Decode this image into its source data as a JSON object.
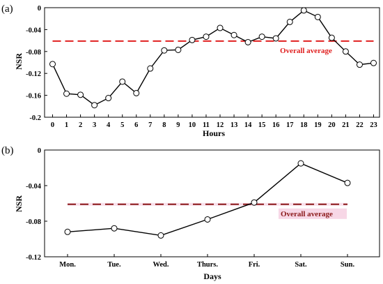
{
  "chart_data": [
    {
      "type": "line",
      "panel_label": "(a)",
      "xlabel": "Hours",
      "ylabel": "NSR",
      "x": [
        "0",
        "1",
        "2",
        "3",
        "4",
        "5",
        "6",
        "7",
        "8",
        "9",
        "10",
        "11",
        "12",
        "13",
        "14",
        "15",
        "16",
        "17",
        "18",
        "19",
        "20",
        "21",
        "22",
        "23"
      ],
      "values": [
        -0.103,
        -0.157,
        -0.159,
        -0.178,
        -0.165,
        -0.135,
        -0.156,
        -0.111,
        -0.078,
        -0.077,
        -0.059,
        -0.053,
        -0.037,
        -0.05,
        -0.063,
        -0.053,
        -0.056,
        -0.026,
        -0.005,
        -0.017,
        -0.055,
        -0.08,
        -0.104,
        -0.101
      ],
      "ylim": [
        -0.2,
        0
      ],
      "yticks": [
        "0",
        "-0.04",
        "-0.08",
        "-0.12",
        "-0.16",
        "-0.2"
      ],
      "yticks_values": [
        0,
        -0.04,
        -0.08,
        -0.12,
        -0.16,
        -0.2
      ],
      "average": -0.061,
      "average_label": "Overall average",
      "average_color": "#e02020",
      "line_color": "#000000",
      "marker": "open-circle",
      "grid": false
    },
    {
      "type": "line",
      "panel_label": "(b)",
      "xlabel": "Days",
      "ylabel": "NSR",
      "x": [
        "Mon.",
        "Tue.",
        "Wed.",
        "Thurs.",
        "Fri.",
        "Sat.",
        "Sun."
      ],
      "values": [
        -0.092,
        -0.088,
        -0.096,
        -0.078,
        -0.059,
        -0.015,
        -0.037
      ],
      "ylim": [
        -0.12,
        0
      ],
      "yticks": [
        "0",
        "-0.04",
        "-0.08",
        "-0.12"
      ],
      "yticks_values": [
        0,
        -0.04,
        -0.08,
        -0.12
      ],
      "average": -0.061,
      "average_label": "Overall average",
      "average_color": "#8b1a1a",
      "average_label_background": "#f7d7e6",
      "line_color": "#000000",
      "marker": "open-circle",
      "grid": false
    }
  ]
}
